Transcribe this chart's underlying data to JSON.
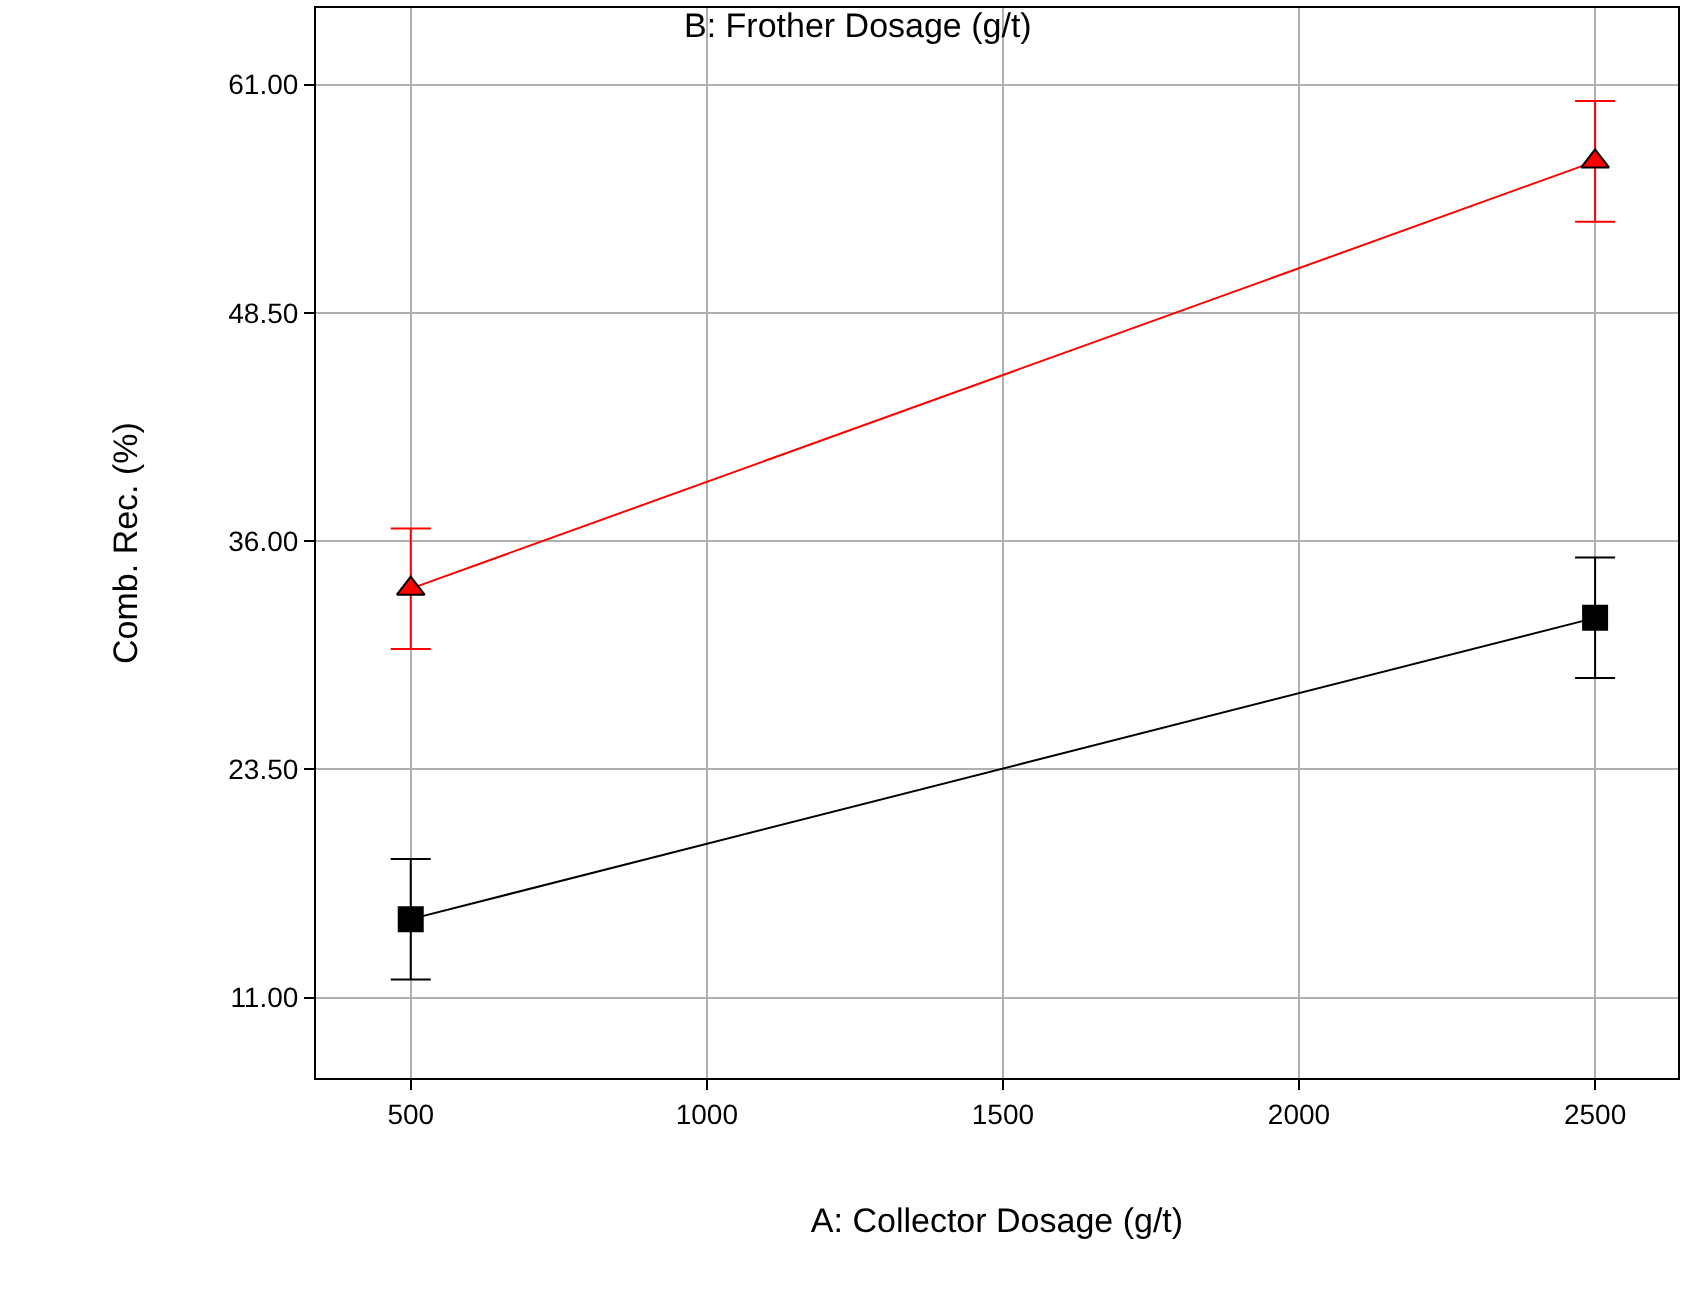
{
  "chart_data": {
    "type": "line",
    "title": "B: Frother Dosage (g/t)",
    "xlabel": "A: Collector Dosage (g/t)",
    "ylabel": "Comb. Rec. (%)",
    "x": [
      500,
      2500
    ],
    "series": [
      {
        "color": "#000000",
        "marker": "square",
        "values": [
          15.3,
          31.8
        ],
        "errors": [
          3.3,
          3.3
        ]
      },
      {
        "color": "#ff0000",
        "marker": "triangle",
        "values": [
          33.4,
          56.8
        ],
        "errors": [
          3.3,
          3.3
        ]
      }
    ],
    "xlim": [
      340,
      2640
    ],
    "xticks": [
      500,
      1000,
      1500,
      2000,
      2500
    ],
    "ylim": [
      6.6,
      65.2
    ],
    "yticks": [
      {
        "value": 11,
        "label": "11.00"
      },
      {
        "value": 23.5,
        "label": "23.50"
      },
      {
        "value": 36,
        "label": "36.00"
      },
      {
        "value": 48.5,
        "label": "48.50"
      },
      {
        "value": 61,
        "label": "61.00"
      }
    ],
    "grid": true,
    "line_style": "solid"
  }
}
